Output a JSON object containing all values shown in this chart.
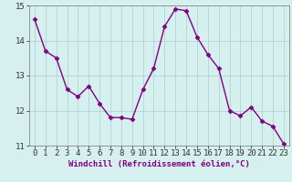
{
  "x": [
    0,
    1,
    2,
    3,
    4,
    5,
    6,
    7,
    8,
    9,
    10,
    11,
    12,
    13,
    14,
    15,
    16,
    17,
    18,
    19,
    20,
    21,
    22,
    23
  ],
  "y": [
    14.6,
    13.7,
    13.5,
    12.6,
    12.4,
    12.7,
    12.2,
    11.8,
    11.8,
    11.75,
    12.6,
    13.2,
    14.4,
    14.9,
    14.85,
    14.1,
    13.6,
    13.2,
    12.0,
    11.85,
    12.1,
    11.7,
    11.55,
    11.05
  ],
  "line_color": "#800080",
  "marker": "D",
  "marker_size": 2.5,
  "bg_color": "#d6efef",
  "grid_color": "#b0d4d4",
  "xlabel": "Windchill (Refroidissement éolien,°C)",
  "xlabel_fontsize": 6.5,
  "tick_fontsize": 6.5,
  "ylim": [
    11,
    15
  ],
  "yticks": [
    11,
    12,
    13,
    14,
    15
  ],
  "xticks": [
    0,
    1,
    2,
    3,
    4,
    5,
    6,
    7,
    8,
    9,
    10,
    11,
    12,
    13,
    14,
    15,
    16,
    17,
    18,
    19,
    20,
    21,
    22,
    23
  ],
  "line_width": 1.0,
  "spine_color": "#888888"
}
